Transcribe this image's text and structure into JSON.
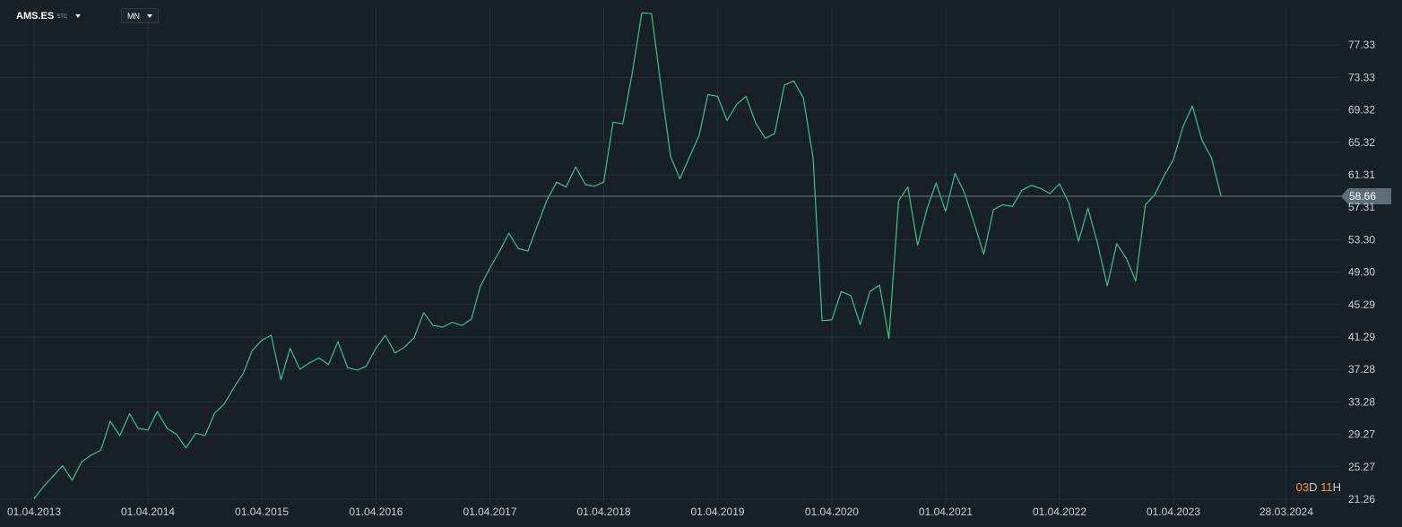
{
  "toolbar": {
    "symbol": "AMS.ES",
    "exchange": "STC",
    "interval": "MN"
  },
  "current_price_label": "58.66",
  "timer": {
    "days": "03",
    "days_unit": "D",
    "hours": "11",
    "hours_unit": "H"
  },
  "colors": {
    "background": "#172027",
    "line": "#3ec08b",
    "grid": "#232e36",
    "price_line": "#6b7c86",
    "price_tag": "#5d6e78",
    "timer_accent": "#f0922e"
  },
  "chart_data": {
    "type": "line",
    "series": [
      {
        "points": [
          [
            "2013-04-01",
            21.3
          ],
          [
            "2013-05-01",
            22.8
          ],
          [
            "2013-06-01",
            24.1
          ],
          [
            "2013-07-01",
            25.4
          ],
          [
            "2013-08-01",
            23.6
          ],
          [
            "2013-09-01",
            25.9
          ],
          [
            "2013-10-01",
            26.7
          ],
          [
            "2013-11-01",
            27.3
          ],
          [
            "2013-12-01",
            30.9
          ],
          [
            "2014-01-01",
            29.1
          ],
          [
            "2014-02-01",
            31.8
          ],
          [
            "2014-03-01",
            30.0
          ],
          [
            "2014-04-01",
            29.8
          ],
          [
            "2014-05-01",
            32.1
          ],
          [
            "2014-06-01",
            30.0
          ],
          [
            "2014-07-01",
            29.3
          ],
          [
            "2014-08-01",
            27.6
          ],
          [
            "2014-09-01",
            29.4
          ],
          [
            "2014-10-01",
            29.1
          ],
          [
            "2014-11-01",
            31.9
          ],
          [
            "2014-12-01",
            33.0
          ],
          [
            "2015-01-01",
            35.0
          ],
          [
            "2015-02-01",
            36.8
          ],
          [
            "2015-03-01",
            39.6
          ],
          [
            "2015-04-01",
            40.9
          ],
          [
            "2015-05-01",
            41.5
          ],
          [
            "2015-06-01",
            36.0
          ],
          [
            "2015-07-01",
            39.9
          ],
          [
            "2015-08-01",
            37.3
          ],
          [
            "2015-09-01",
            38.1
          ],
          [
            "2015-10-01",
            38.7
          ],
          [
            "2015-11-01",
            37.9
          ],
          [
            "2015-12-01",
            40.7
          ],
          [
            "2016-01-01",
            37.5
          ],
          [
            "2016-02-01",
            37.2
          ],
          [
            "2016-03-01",
            37.7
          ],
          [
            "2016-04-01",
            39.9
          ],
          [
            "2016-05-01",
            41.5
          ],
          [
            "2016-06-01",
            39.3
          ],
          [
            "2016-07-01",
            40.0
          ],
          [
            "2016-08-01",
            41.2
          ],
          [
            "2016-09-01",
            44.3
          ],
          [
            "2016-10-01",
            42.7
          ],
          [
            "2016-11-01",
            42.5
          ],
          [
            "2016-12-01",
            43.1
          ],
          [
            "2017-01-01",
            42.7
          ],
          [
            "2017-02-01",
            43.5
          ],
          [
            "2017-03-01",
            47.5
          ],
          [
            "2017-04-01",
            49.8
          ],
          [
            "2017-05-01",
            51.8
          ],
          [
            "2017-06-01",
            54.1
          ],
          [
            "2017-07-01",
            52.2
          ],
          [
            "2017-08-01",
            51.9
          ],
          [
            "2017-09-01",
            55.1
          ],
          [
            "2017-10-01",
            58.2
          ],
          [
            "2017-11-01",
            60.4
          ],
          [
            "2017-12-01",
            59.8
          ],
          [
            "2018-01-01",
            62.3
          ],
          [
            "2018-02-01",
            60.1
          ],
          [
            "2018-03-01",
            59.9
          ],
          [
            "2018-04-01",
            60.4
          ],
          [
            "2018-05-01",
            67.8
          ],
          [
            "2018-06-01",
            67.6
          ],
          [
            "2018-07-01",
            73.8
          ],
          [
            "2018-08-01",
            81.3
          ],
          [
            "2018-09-01",
            81.2
          ],
          [
            "2018-10-01",
            72.4
          ],
          [
            "2018-11-01",
            63.6
          ],
          [
            "2018-12-01",
            60.8
          ],
          [
            "2019-01-01",
            63.5
          ],
          [
            "2019-02-01",
            66.2
          ],
          [
            "2019-03-01",
            71.2
          ],
          [
            "2019-04-01",
            71.0
          ],
          [
            "2019-05-01",
            68.0
          ],
          [
            "2019-06-01",
            70.0
          ],
          [
            "2019-07-01",
            71.0
          ],
          [
            "2019-08-01",
            67.7
          ],
          [
            "2019-09-01",
            65.8
          ],
          [
            "2019-10-01",
            66.4
          ],
          [
            "2019-11-01",
            72.4
          ],
          [
            "2019-12-01",
            72.9
          ],
          [
            "2020-01-01",
            70.8
          ],
          [
            "2020-02-01",
            63.4
          ],
          [
            "2020-03-01",
            43.3
          ],
          [
            "2020-04-01",
            43.4
          ],
          [
            "2020-05-01",
            46.9
          ],
          [
            "2020-06-01",
            46.4
          ],
          [
            "2020-07-01",
            42.8
          ],
          [
            "2020-08-01",
            46.9
          ],
          [
            "2020-09-01",
            47.7
          ],
          [
            "2020-10-01",
            41.1
          ],
          [
            "2020-11-01",
            58.1
          ],
          [
            "2020-12-01",
            59.8
          ],
          [
            "2021-01-01",
            52.6
          ],
          [
            "2021-02-01",
            57.2
          ],
          [
            "2021-03-01",
            60.3
          ],
          [
            "2021-04-01",
            56.8
          ],
          [
            "2021-05-01",
            61.5
          ],
          [
            "2021-06-01",
            59.0
          ],
          [
            "2021-07-01",
            55.4
          ],
          [
            "2021-08-01",
            51.5
          ],
          [
            "2021-09-01",
            57.0
          ],
          [
            "2021-10-01",
            57.6
          ],
          [
            "2021-11-01",
            57.4
          ],
          [
            "2021-12-01",
            59.4
          ],
          [
            "2022-01-01",
            60.0
          ],
          [
            "2022-02-01",
            59.6
          ],
          [
            "2022-03-01",
            59.0
          ],
          [
            "2022-04-01",
            60.2
          ],
          [
            "2022-05-01",
            57.8
          ],
          [
            "2022-06-01",
            53.1
          ],
          [
            "2022-07-01",
            57.2
          ],
          [
            "2022-08-01",
            52.8
          ],
          [
            "2022-09-01",
            47.6
          ],
          [
            "2022-10-01",
            52.8
          ],
          [
            "2022-11-01",
            51.0
          ],
          [
            "2022-12-01",
            48.2
          ],
          [
            "2023-01-01",
            57.6
          ],
          [
            "2023-02-01",
            58.9
          ],
          [
            "2023-03-01",
            61.1
          ],
          [
            "2023-04-01",
            63.2
          ],
          [
            "2023-05-01",
            67.2
          ],
          [
            "2023-06-01",
            69.8
          ],
          [
            "2023-07-01",
            65.6
          ],
          [
            "2023-08-01",
            63.4
          ],
          [
            "2023-09-01",
            58.6
          ]
        ]
      }
    ],
    "y_ticks": [
      "77.33",
      "73.33",
      "69.32",
      "65.32",
      "61.31",
      "57.31",
      "53.30",
      "49.30",
      "45.29",
      "41.29",
      "37.28",
      "33.28",
      "29.27",
      "25.27",
      "21.26"
    ],
    "x_ticks": [
      "01.04.2013",
      "01.04.2014",
      "01.04.2015",
      "01.04.2016",
      "01.04.2017",
      "01.04.2018",
      "01.04.2019",
      "01.04.2020",
      "01.04.2021",
      "01.04.2022",
      "01.04.2023",
      "28.03.2024"
    ],
    "x_tick_dates": [
      "2013-04-01",
      "2014-04-01",
      "2015-04-01",
      "2016-04-01",
      "2017-04-01",
      "2018-04-01",
      "2019-04-01",
      "2020-04-01",
      "2021-04-01",
      "2022-04-01",
      "2023-04-01",
      "2024-03-28"
    ],
    "current_price": 58.66,
    "ylim": [
      21.26,
      82.0
    ],
    "xlim": [
      "2013-03-01",
      "2024-09-01"
    ],
    "grid": true
  }
}
